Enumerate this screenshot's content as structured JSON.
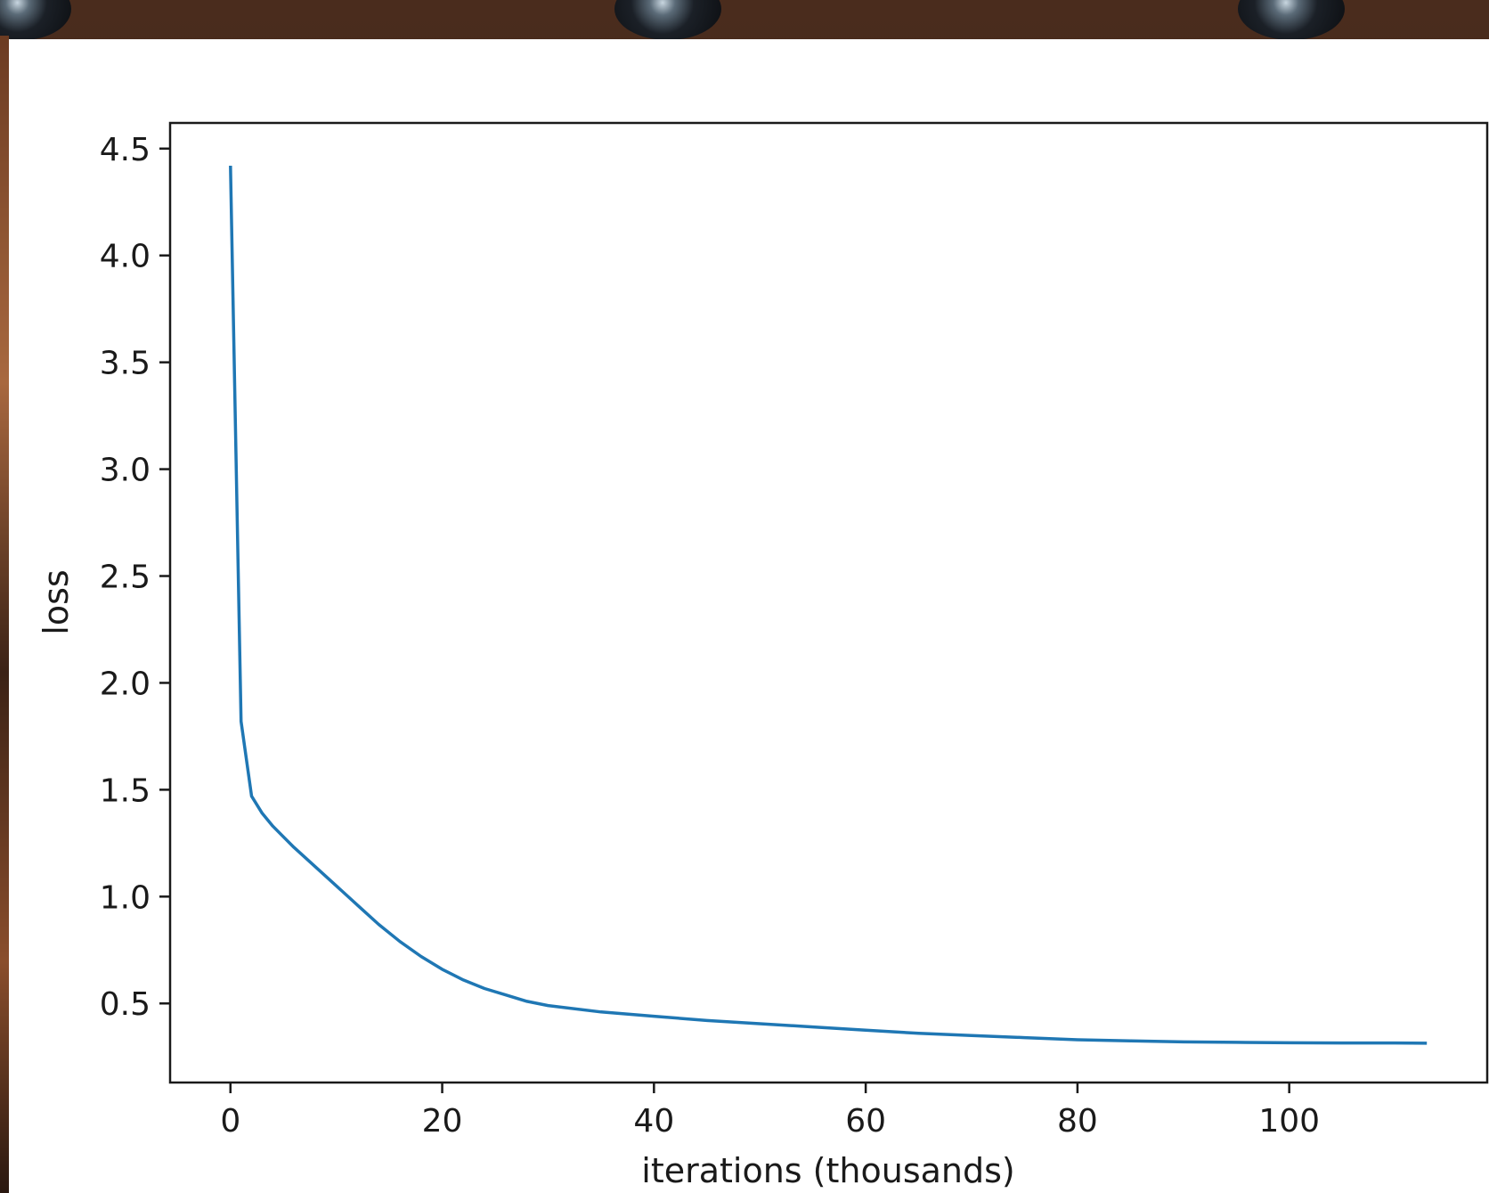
{
  "chart_data": {
    "type": "line",
    "title": "",
    "xlabel": "iterations (thousands)",
    "ylabel": "loss",
    "xlim": [
      -5.7,
      118.7
    ],
    "ylim": [
      0.13,
      4.62
    ],
    "x_ticks": [
      "0",
      "20",
      "40",
      "60",
      "80",
      "100"
    ],
    "y_ticks": [
      "0.5",
      "1.0",
      "1.5",
      "2.0",
      "2.5",
      "3.0",
      "3.5",
      "4.0",
      "4.5"
    ],
    "grid": false,
    "legend": "none",
    "series": [
      {
        "color": "#1f77b4",
        "x": [
          0,
          1,
          2,
          3,
          4,
          5,
          6,
          8,
          10,
          12,
          14,
          16,
          18,
          20,
          22,
          24,
          26,
          28,
          30,
          35,
          40,
          45,
          50,
          55,
          60,
          65,
          70,
          75,
          80,
          85,
          90,
          95,
          100,
          105,
          110,
          113
        ],
        "y": [
          4.42,
          1.82,
          1.47,
          1.39,
          1.33,
          1.28,
          1.23,
          1.14,
          1.05,
          0.96,
          0.87,
          0.79,
          0.72,
          0.66,
          0.61,
          0.57,
          0.54,
          0.51,
          0.49,
          0.46,
          0.44,
          0.42,
          0.405,
          0.39,
          0.375,
          0.36,
          0.35,
          0.34,
          0.33,
          0.325,
          0.32,
          0.318,
          0.316,
          0.315,
          0.315,
          0.314
        ]
      }
    ]
  }
}
